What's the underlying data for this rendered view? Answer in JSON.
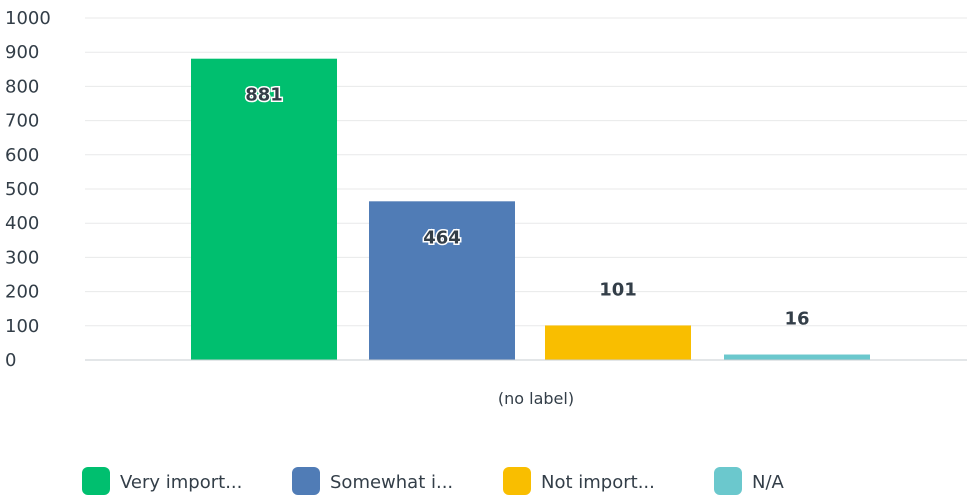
{
  "chart_data": {
    "type": "bar",
    "title": "",
    "xlabel": "",
    "ylabel": "",
    "x_category_label": "(no label)",
    "ylim": [
      0,
      1000
    ],
    "y_ticks": [
      0,
      100,
      200,
      300,
      400,
      500,
      600,
      700,
      800,
      900,
      1000
    ],
    "grid": true,
    "legend_position": "bottom",
    "series": [
      {
        "name": "Very import...",
        "value": 881,
        "color": "#00bf6f"
      },
      {
        "name": "Somewhat i...",
        "value": 464,
        "color": "#507cb6"
      },
      {
        "name": "Not import...",
        "value": 101,
        "color": "#f9be00"
      },
      {
        "name": "N/A",
        "value": 16,
        "color": "#6bc8cd"
      }
    ]
  }
}
